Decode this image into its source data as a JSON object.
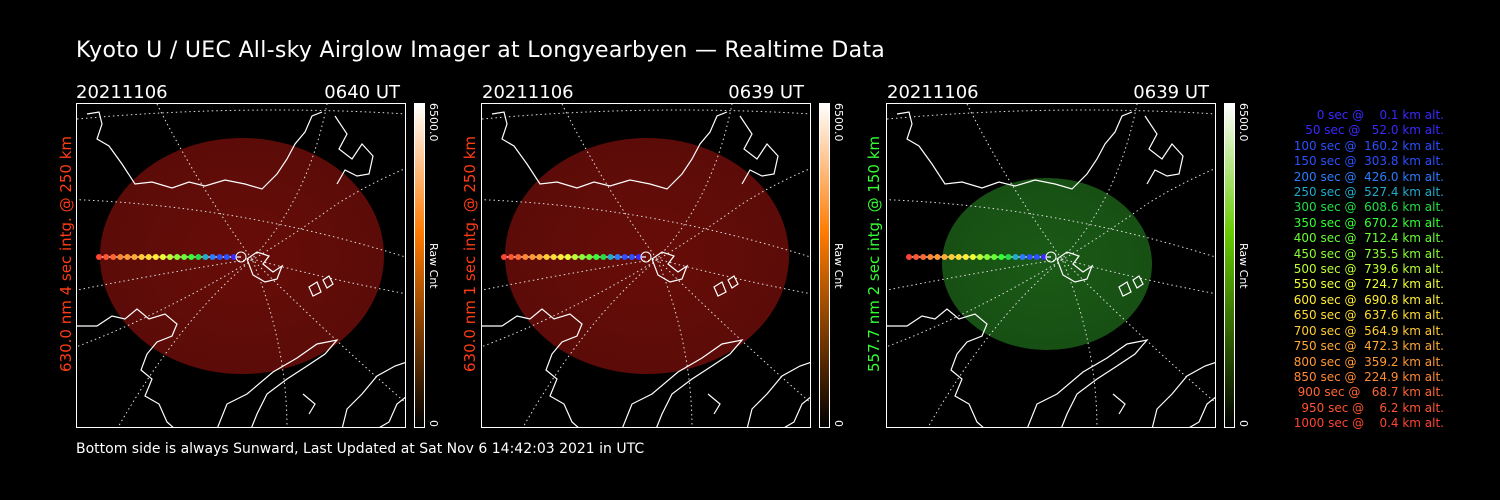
{
  "header": {
    "title": "Kyoto U / UEC All-sky Airglow Imager at Longyearbyen — Realtime Data"
  },
  "panels": [
    {
      "date": "20211106",
      "time": "0640 UT",
      "label": "630.0 nm 4 sec intg. @ 250 km",
      "label_color": "#ff3c14",
      "colorbar_max": "6500.0",
      "colorbar_min": "0",
      "colorbar_unit": "Raw Cnt",
      "glow_color": "#7a0f0a",
      "bar_color": "#ff7a00"
    },
    {
      "date": "20211106",
      "time": "0639 UT",
      "label": "630.0 nm 1 sec intg. @ 250 km",
      "label_color": "#ff3c14",
      "colorbar_max": "6500.0",
      "colorbar_min": "0",
      "colorbar_unit": "Raw Cnt",
      "glow_color": "#7a0f0a",
      "bar_color": "#ff7a00"
    },
    {
      "date": "20211106",
      "time": "0639 UT",
      "label": "557.7 nm 2 sec intg. @ 150 km",
      "label_color": "#33ff33",
      "colorbar_max": "6500.0",
      "colorbar_min": "0",
      "colorbar_unit": "Raw Cnt",
      "glow_color": "#1f6a1a",
      "bar_color": "#66cc00"
    }
  ],
  "legend": [
    {
      "text": "0 sec @    0.1 km alt.",
      "color": "#3a28ff"
    },
    {
      "text": "50 sec @   52.0 km alt.",
      "color": "#3a28ff"
    },
    {
      "text": "100 sec @  160.2 km alt.",
      "color": "#2a50ff"
    },
    {
      "text": "150 sec @  303.8 km alt.",
      "color": "#2a50ff"
    },
    {
      "text": "200 sec @  426.0 km alt.",
      "color": "#2a7cff"
    },
    {
      "text": "250 sec @  527.4 km alt.",
      "color": "#22aacc"
    },
    {
      "text": "300 sec @  608.6 km alt.",
      "color": "#22dd44"
    },
    {
      "text": "350 sec @  670.2 km alt.",
      "color": "#33ff33"
    },
    {
      "text": "400 sec @  712.4 km alt.",
      "color": "#66ff33"
    },
    {
      "text": "450 sec @  735.5 km alt.",
      "color": "#88ff33"
    },
    {
      "text": "500 sec @  739.6 km alt.",
      "color": "#bbff33"
    },
    {
      "text": "550 sec @  724.7 km alt.",
      "color": "#eeff33"
    },
    {
      "text": "600 sec @  690.8 km alt.",
      "color": "#ffee33"
    },
    {
      "text": "650 sec @  637.6 km alt.",
      "color": "#ffdd33"
    },
    {
      "text": "700 sec @  564.9 km alt.",
      "color": "#ffcc33"
    },
    {
      "text": "750 sec @  472.3 km alt.",
      "color": "#ffaa33"
    },
    {
      "text": "800 sec @  359.2 km alt.",
      "color": "#ff9933"
    },
    {
      "text": "850 sec @  224.9 km alt.",
      "color": "#ff8833"
    },
    {
      "text": "900 sec @   68.7 km alt.",
      "color": "#ff6633"
    },
    {
      "text": "950 sec @    6.2 km alt.",
      "color": "#ff5533"
    },
    {
      "text": "1000 sec @    0.4 km alt.",
      "color": "#ff4433"
    }
  ],
  "footer": {
    "text": "Bottom side is always Sunward, Last Updated at Sat Nov  6 14:42:03 2021 in UTC"
  }
}
